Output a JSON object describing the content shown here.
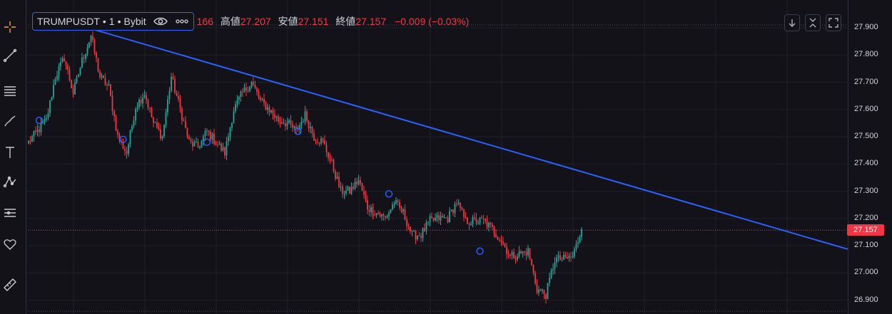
{
  "legend": {
    "symbol": "TRUMPUSDT",
    "separator": "•",
    "interval": "1",
    "exchange": "Bybit",
    "open_value": "166",
    "high_label": "高値",
    "high_value": "27.207",
    "low_label": "安値",
    "low_value": "27.151",
    "close_label": "終値",
    "close_value": "27.157",
    "change": "−0.009 (−0.03%)"
  },
  "colors": {
    "up": "#26a69a",
    "down": "#f23645",
    "trendline": "#2962ff",
    "background": "#131218",
    "grid": "#1f2029"
  },
  "icons": {
    "left_toolbar": [
      "crosshair-icon",
      "trend-line-icon",
      "fib-retracement-icon",
      "brush-icon",
      "text-icon",
      "pattern-icon",
      "forecast-icon",
      "heart-icon",
      "ruler-icon"
    ],
    "legend": [
      "eye-icon",
      "more-icon"
    ],
    "top_right": [
      "arrow-down-icon",
      "collapse-icon",
      "fullscreen-icon"
    ]
  },
  "price_axis": {
    "ticks": [
      "27.900",
      "27.800",
      "27.700",
      "27.600",
      "27.500",
      "27.400",
      "27.300",
      "27.200",
      "27.100",
      "27.000",
      "26.900"
    ]
  },
  "chart_data": {
    "type": "candlestick",
    "symbol": "TRUMPUSDT",
    "interval": "1",
    "exchange": "Bybit",
    "ylim": [
      26.88,
      27.92
    ],
    "last_price": 27.157,
    "grid": true,
    "anchor_points": [
      {
        "i": 0,
        "p": 27.48
      },
      {
        "i": 10,
        "p": 27.56
      },
      {
        "i": 15,
        "p": 27.72
      },
      {
        "i": 20,
        "p": 27.79
      },
      {
        "i": 25,
        "p": 27.66
      },
      {
        "i": 30,
        "p": 27.78
      },
      {
        "i": 35,
        "p": 27.87
      },
      {
        "i": 40,
        "p": 27.72
      },
      {
        "i": 45,
        "p": 27.68
      },
      {
        "i": 50,
        "p": 27.5
      },
      {
        "i": 55,
        "p": 27.44
      },
      {
        "i": 60,
        "p": 27.61
      },
      {
        "i": 65,
        "p": 27.66
      },
      {
        "i": 70,
        "p": 27.55
      },
      {
        "i": 75,
        "p": 27.5
      },
      {
        "i": 80,
        "p": 27.72
      },
      {
        "i": 85,
        "p": 27.6
      },
      {
        "i": 90,
        "p": 27.48
      },
      {
        "i": 95,
        "p": 27.46
      },
      {
        "i": 100,
        "p": 27.52
      },
      {
        "i": 105,
        "p": 27.48
      },
      {
        "i": 110,
        "p": 27.44
      },
      {
        "i": 115,
        "p": 27.6
      },
      {
        "i": 120,
        "p": 27.66
      },
      {
        "i": 125,
        "p": 27.7
      },
      {
        "i": 130,
        "p": 27.63
      },
      {
        "i": 135,
        "p": 27.6
      },
      {
        "i": 140,
        "p": 27.56
      },
      {
        "i": 145,
        "p": 27.55
      },
      {
        "i": 150,
        "p": 27.52
      },
      {
        "i": 155,
        "p": 27.58
      },
      {
        "i": 160,
        "p": 27.5
      },
      {
        "i": 165,
        "p": 27.48
      },
      {
        "i": 170,
        "p": 27.4
      },
      {
        "i": 175,
        "p": 27.3
      },
      {
        "i": 180,
        "p": 27.3
      },
      {
        "i": 185,
        "p": 27.34
      },
      {
        "i": 190,
        "p": 27.24
      },
      {
        "i": 195,
        "p": 27.22
      },
      {
        "i": 200,
        "p": 27.2
      },
      {
        "i": 205,
        "p": 27.26
      },
      {
        "i": 210,
        "p": 27.22
      },
      {
        "i": 215,
        "p": 27.14
      },
      {
        "i": 220,
        "p": 27.14
      },
      {
        "i": 225,
        "p": 27.19
      },
      {
        "i": 230,
        "p": 27.2
      },
      {
        "i": 235,
        "p": 27.2
      },
      {
        "i": 240,
        "p": 27.26
      },
      {
        "i": 245,
        "p": 27.19
      },
      {
        "i": 250,
        "p": 27.19
      },
      {
        "i": 255,
        "p": 27.19
      },
      {
        "i": 260,
        "p": 27.16
      },
      {
        "i": 265,
        "p": 27.12
      },
      {
        "i": 270,
        "p": 27.06
      },
      {
        "i": 275,
        "p": 27.07
      },
      {
        "i": 280,
        "p": 27.08
      },
      {
        "i": 285,
        "p": 26.94
      },
      {
        "i": 290,
        "p": 26.92
      },
      {
        "i": 295,
        "p": 27.05
      },
      {
        "i": 300,
        "p": 27.05
      },
      {
        "i": 305,
        "p": 27.06
      },
      {
        "i": 310,
        "p": 27.16
      }
    ],
    "trendline": {
      "from": {
        "i": 28,
        "p": 27.91
      },
      "to": {
        "i": 400,
        "p": 27.2
      }
    },
    "markers": [
      {
        "i": 6,
        "p": 27.56
      },
      {
        "i": 53,
        "p": 27.49
      },
      {
        "i": 100,
        "p": 27.48
      },
      {
        "i": 151,
        "p": 27.52
      },
      {
        "i": 202,
        "p": 27.29
      },
      {
        "i": 253,
        "p": 27.08
      }
    ]
  }
}
